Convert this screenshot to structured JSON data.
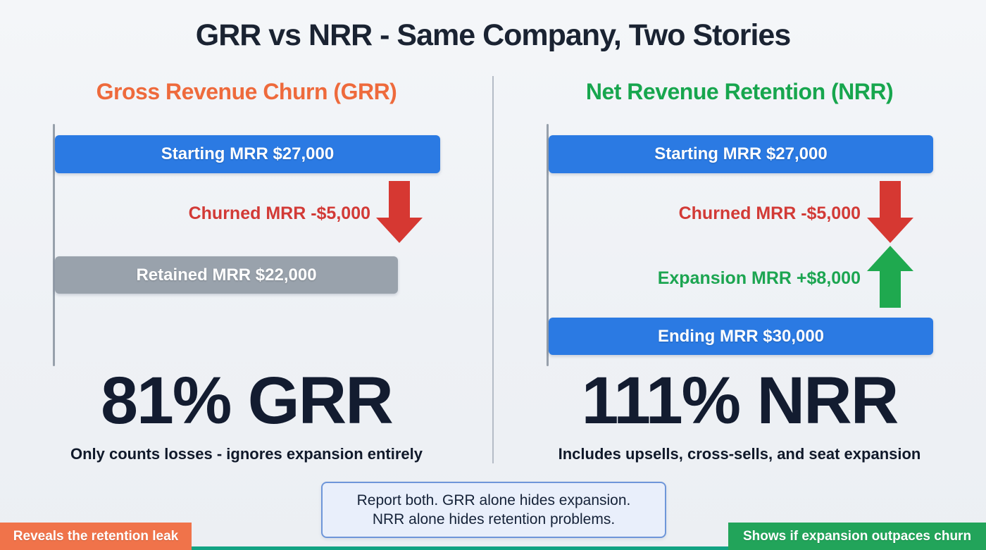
{
  "title": "GRR vs NRR - Same Company, Two Stories",
  "grr": {
    "heading": "Gross Revenue Churn (GRR)",
    "starting_bar": "Starting MRR $27,000",
    "churned_label": "Churned MRR -$5,000",
    "retained_bar": "Retained MRR $22,000",
    "result": "81% GRR",
    "note": "Only counts losses - ignores expansion entirely",
    "badge": "Reveals the retention leak"
  },
  "nrr": {
    "heading": "Net Revenue Retention (NRR)",
    "starting_bar": "Starting MRR $27,000",
    "churned_label": "Churned MRR -$5,000",
    "expansion_label": "Expansion MRR +$8,000",
    "ending_bar": "Ending MRR $30,000",
    "result": "111% NRR",
    "note": "Includes upsells, cross-sells, and seat expansion",
    "badge": "Shows if expansion outpaces churn"
  },
  "summary": {
    "line1": "Report both. GRR alone hides expansion.",
    "line2": "NRR alone hides retention problems."
  },
  "colors": {
    "bar_blue": "#2b7ae3",
    "bar_gray": "#99a2ac",
    "churn_red": "#d63832",
    "expansion_green": "#1fa94f",
    "grr_heading_orange": "#ee6a3c",
    "nrr_heading_green": "#17a64e",
    "navy_text": "#131c30",
    "badge_orange": "#f0734a",
    "badge_green": "#22a45a",
    "summary_border_blue": "#6e96d9",
    "summary_bg": "#e9effb",
    "background": "#eef1f5"
  },
  "chart_data": [
    {
      "type": "bar",
      "title": "Gross Revenue Churn (GRR)",
      "categories": [
        "Starting MRR",
        "Churned MRR",
        "Retained MRR"
      ],
      "values": [
        27000,
        -5000,
        22000
      ],
      "result_metric": "81% GRR",
      "annotation": "Only counts losses - ignores expansion entirely",
      "orientation": "horizontal",
      "legend_position": "none",
      "grid": false
    },
    {
      "type": "bar",
      "title": "Net Revenue Retention (NRR)",
      "categories": [
        "Starting MRR",
        "Churned MRR",
        "Expansion MRR",
        "Ending MRR"
      ],
      "values": [
        27000,
        -5000,
        8000,
        30000
      ],
      "result_metric": "111% NRR",
      "annotation": "Includes upsells, cross-sells, and seat expansion",
      "orientation": "horizontal",
      "legend_position": "none",
      "grid": false
    }
  ]
}
